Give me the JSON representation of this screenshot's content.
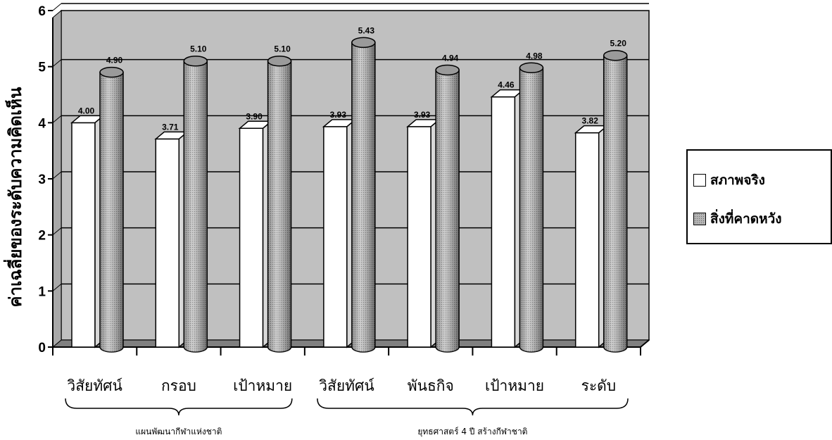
{
  "chart_data": {
    "type": "bar",
    "ylabel": "ค่าเฉลี่ยของระดับความคิดเห็น",
    "ylim": [
      0,
      6
    ],
    "y_ticks": [
      "0",
      "1",
      "2",
      "3",
      "4",
      "5",
      "6"
    ],
    "categories": [
      "วิสัยทัศน์",
      "กรอบ",
      "เป้าหมาย",
      "วิสัยทัศน์",
      "พันธกิจ",
      "เป้าหมาย",
      "ระดับ"
    ],
    "groups": [
      {
        "label": "แผนพัฒนากีฬาแห่งชาติ",
        "categories": [
          "วิสัยทัศน์",
          "กรอบ",
          "เป้าหมาย"
        ]
      },
      {
        "label": "ยุทธศาสตร์ 4 ปี สร้างกีฬาชาติ",
        "categories": [
          "วิสัยทัศน์",
          "พันธกิจ",
          "เป้าหมาย",
          "ระดับ"
        ]
      }
    ],
    "series": [
      {
        "name": "สภาพจริง",
        "values": [
          4.0,
          3.71,
          3.9,
          3.93,
          3.93,
          4.46,
          3.82
        ],
        "labels": [
          "4.00",
          "3.71",
          "3.90",
          "3.93",
          "3.93",
          "4.46",
          "3.82"
        ]
      },
      {
        "name": "สิ่งที่คาดหวัง",
        "values": [
          4.9,
          5.1,
          5.1,
          5.43,
          4.94,
          4.98,
          5.2
        ],
        "labels": [
          "4.90",
          "5.10",
          "5.10",
          "5.43",
          "4.94",
          "4.98",
          "5.20"
        ]
      }
    ],
    "grid": true,
    "legend_position": "right",
    "colors": {
      "plot_bg": "#c0c0c0",
      "series1_fill": "#ffffff",
      "series2_fill": "#9a9a9a",
      "axis": "#000000"
    }
  }
}
